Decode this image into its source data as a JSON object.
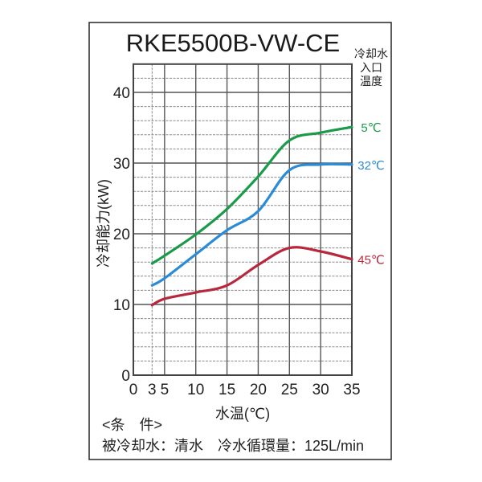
{
  "chart_data": {
    "type": "line",
    "title": "RKE5500B-VW-CE",
    "xlabel": "水温(℃)",
    "ylabel": "冷却能力(kW)",
    "legend_title": [
      "冷却水",
      "入口",
      "温度"
    ],
    "legend_position": "right",
    "xlim": [
      0,
      35
    ],
    "ylim": [
      0,
      44
    ],
    "x_ticks": [
      0,
      3,
      5,
      10,
      15,
      20,
      25,
      30,
      35
    ],
    "y_ticks": [
      0,
      10,
      20,
      30,
      40
    ],
    "grid": true,
    "x": [
      3,
      5,
      10,
      15,
      20,
      25,
      30,
      35
    ],
    "series": [
      {
        "name": "5℃",
        "color": "#1a9b4a",
        "values": [
          15.8,
          16.9,
          19.9,
          23.5,
          28.1,
          33.2,
          34.3,
          35.1
        ]
      },
      {
        "name": "32℃",
        "color": "#2a8bd6",
        "values": [
          12.7,
          13.7,
          17.1,
          20.5,
          23.2,
          29.0,
          29.8,
          29.8
        ]
      },
      {
        "name": "45℃",
        "color": "#b8283c",
        "values": [
          9.9,
          10.8,
          11.7,
          12.7,
          15.6,
          18.0,
          17.5,
          16.4
        ]
      }
    ]
  },
  "conditions": {
    "header": "<条　件>",
    "line": "被冷却水：清水　冷水循環量：125L/min"
  }
}
